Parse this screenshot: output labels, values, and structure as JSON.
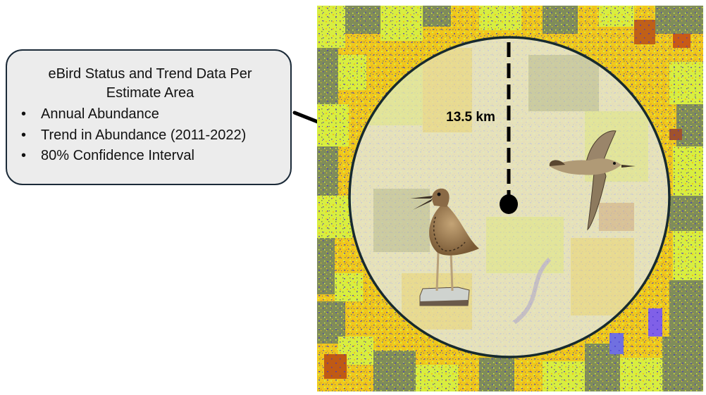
{
  "callout": {
    "title": "eBird Status and Trend Data Per Estimate Area",
    "items": [
      "Annual Abundance",
      "Trend in Abundance (2011-2022)",
      "80% Confidence Interval"
    ]
  },
  "radius_label": "13.5 km",
  "colors": {
    "callout_bg": "#ececec",
    "callout_border": "#1b2a38",
    "cropland_yellow": "#f0c81c",
    "grassland_green": "#d8ee40",
    "pasture_olive": "#7f8c5a",
    "wetland_blue": "#4a3fd0",
    "circle_overlay": "#e3e7dc",
    "circle_border": "#172a2f"
  },
  "icons": [
    "upland-sandpiper-standing",
    "upland-sandpiper-flying"
  ]
}
